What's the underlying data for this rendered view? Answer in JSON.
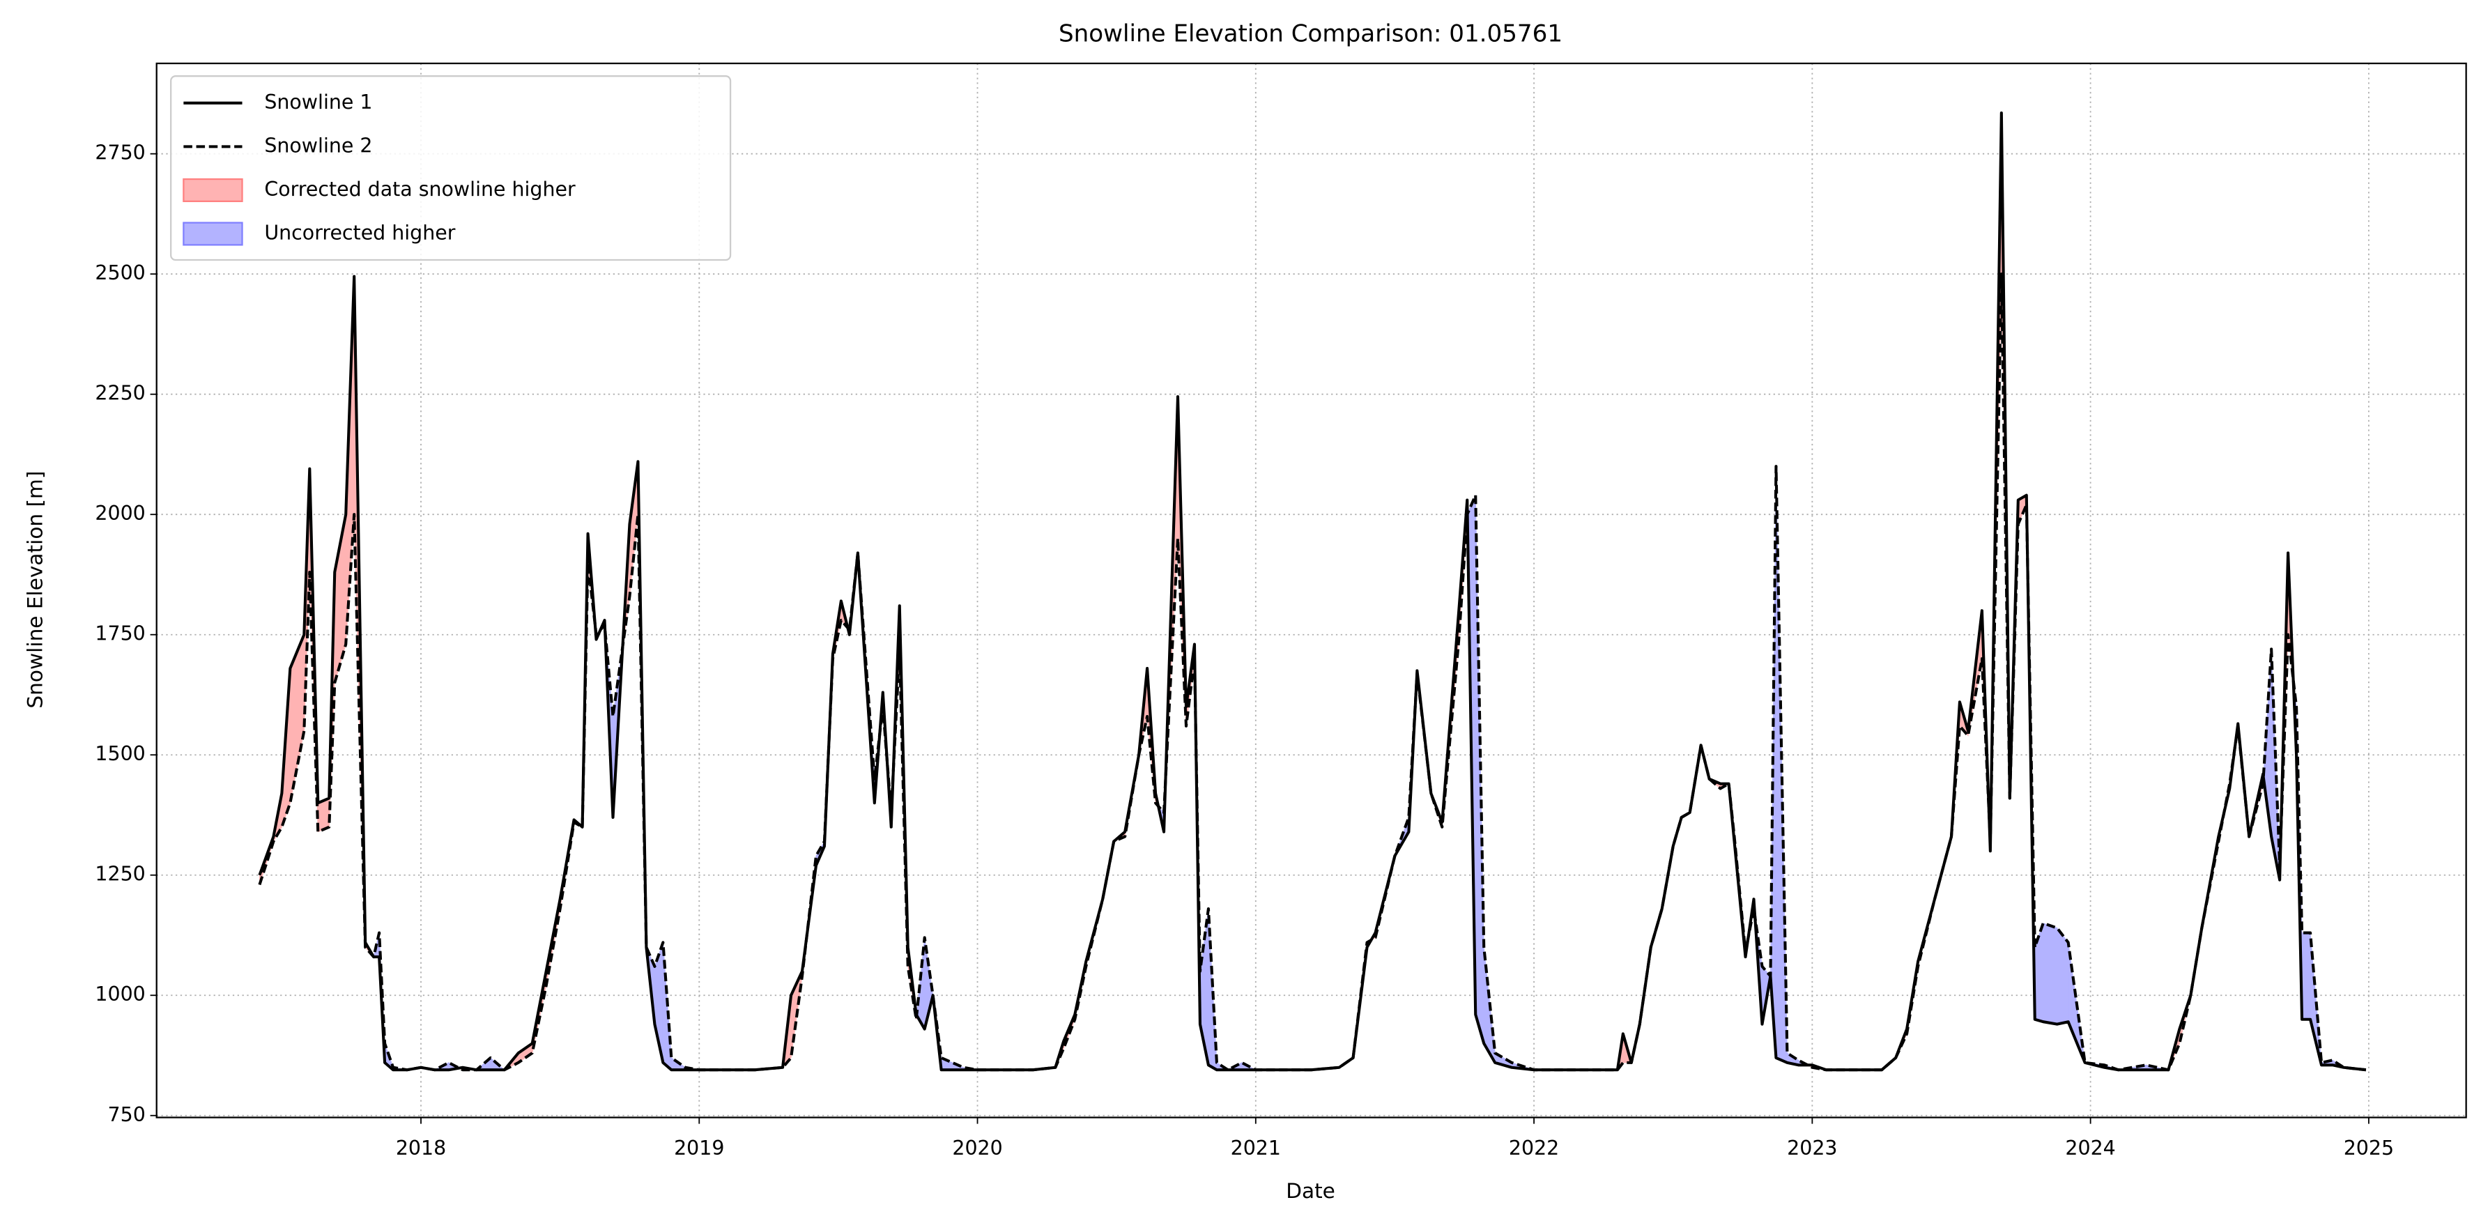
{
  "chart_data": {
    "type": "line",
    "title": "Snowline Elevation Comparison: 01.05761",
    "xlabel": "Date",
    "ylabel": "Snowline Elevation [m]",
    "x": [
      2017.42,
      2017.47,
      2017.5,
      2017.53,
      2017.58,
      2017.6,
      2017.63,
      2017.67,
      2017.69,
      2017.73,
      2017.76,
      2017.8,
      2017.83,
      2017.85,
      2017.87,
      2017.9,
      2017.95,
      2018.0,
      2018.05,
      2018.1,
      2018.15,
      2018.2,
      2018.25,
      2018.3,
      2018.35,
      2018.4,
      2018.45,
      2018.5,
      2018.55,
      2018.58,
      2018.6,
      2018.63,
      2018.66,
      2018.69,
      2018.75,
      2018.78,
      2018.81,
      2018.84,
      2018.87,
      2018.9,
      2018.95,
      2019.0,
      2019.1,
      2019.2,
      2019.3,
      2019.33,
      2019.37,
      2019.42,
      2019.45,
      2019.48,
      2019.51,
      2019.54,
      2019.57,
      2019.63,
      2019.66,
      2019.69,
      2019.72,
      2019.75,
      2019.78,
      2019.81,
      2019.84,
      2019.87,
      2019.95,
      2020.0,
      2020.1,
      2020.2,
      2020.28,
      2020.31,
      2020.35,
      2020.39,
      2020.45,
      2020.49,
      2020.53,
      2020.58,
      2020.61,
      2020.64,
      2020.67,
      2020.72,
      2020.75,
      2020.78,
      2020.8,
      2020.83,
      2020.86,
      2020.9,
      2020.95,
      2021.0,
      2021.1,
      2021.2,
      2021.3,
      2021.35,
      2021.4,
      2021.43,
      2021.5,
      2021.55,
      2021.58,
      2021.63,
      2021.67,
      2021.73,
      2021.76,
      2021.79,
      2021.82,
      2021.86,
      2021.92,
      2022.0,
      2022.1,
      2022.2,
      2022.3,
      2022.32,
      2022.35,
      2022.38,
      2022.42,
      2022.46,
      2022.5,
      2022.53,
      2022.56,
      2022.6,
      2022.63,
      2022.67,
      2022.7,
      2022.72,
      2022.76,
      2022.79,
      2022.82,
      2022.85,
      2022.87,
      2022.91,
      2022.95,
      2023.0,
      2023.05,
      2023.15,
      2023.25,
      2023.3,
      2023.34,
      2023.38,
      2023.44,
      2023.5,
      2023.53,
      2023.56,
      2023.61,
      2023.64,
      2023.68,
      2023.71,
      2023.74,
      2023.77,
      2023.8,
      2023.83,
      2023.88,
      2023.92,
      2023.98,
      2024.05,
      2024.1,
      2024.2,
      2024.28,
      2024.32,
      2024.36,
      2024.4,
      2024.46,
      2024.5,
      2024.53,
      2024.57,
      2024.62,
      2024.65,
      2024.68,
      2024.71,
      2024.74,
      2024.76,
      2024.79,
      2024.83,
      2024.87,
      2024.91,
      2024.99
    ],
    "series": [
      {
        "name": "Snowline 1",
        "color": "#000000",
        "linestyle": "solid",
        "values": [
          1250,
          1330,
          1420,
          1680,
          1750,
          2095,
          1400,
          1410,
          1880,
          2000,
          2495,
          1110,
          1080,
          1080,
          860,
          845,
          845,
          850,
          845,
          845,
          850,
          845,
          845,
          845,
          880,
          900,
          1050,
          1200,
          1365,
          1350,
          1960,
          1740,
          1780,
          1370,
          1980,
          2110,
          1100,
          940,
          860,
          845,
          845,
          845,
          845,
          845,
          850,
          1000,
          1050,
          1270,
          1310,
          1710,
          1820,
          1750,
          1920,
          1400,
          1630,
          1350,
          1810,
          1100,
          960,
          930,
          1000,
          845,
          845,
          845,
          845,
          845,
          850,
          905,
          960,
          1070,
          1200,
          1320,
          1340,
          1500,
          1680,
          1420,
          1340,
          2245,
          1600,
          1730,
          940,
          855,
          845,
          845,
          845,
          845,
          845,
          845,
          850,
          870,
          1100,
          1130,
          1290,
          1340,
          1675,
          1420,
          1360,
          1800,
          2030,
          960,
          900,
          860,
          850,
          845,
          845,
          845,
          845,
          920,
          860,
          940,
          1100,
          1180,
          1310,
          1370,
          1380,
          1520,
          1450,
          1440,
          1440,
          1320,
          1080,
          1200,
          940,
          1040,
          870,
          860,
          855,
          855,
          845,
          845,
          845,
          870,
          930,
          1070,
          1200,
          1330,
          1610,
          1550,
          1800,
          1300,
          2835,
          1410,
          2030,
          2040,
          950,
          945,
          940,
          945,
          860,
          850,
          845,
          845,
          845,
          930,
          1000,
          1140,
          1330,
          1430,
          1565,
          1330,
          1460,
          1330,
          1240,
          1920,
          1500,
          950,
          950,
          855,
          855,
          850,
          845
        ]
      },
      {
        "name": "Snowline 2",
        "color": "#000000",
        "linestyle": "dashed",
        "values": [
          1230,
          1320,
          1350,
          1400,
          1550,
          1880,
          1340,
          1350,
          1650,
          1730,
          2000,
          1100,
          1080,
          1130,
          900,
          850,
          845,
          850,
          845,
          860,
          845,
          845,
          870,
          845,
          860,
          880,
          1020,
          1180,
          1360,
          1350,
          1900,
          1750,
          1770,
          1580,
          1830,
          2000,
          1100,
          1060,
          1110,
          870,
          850,
          845,
          845,
          845,
          850,
          870,
          1040,
          1290,
          1320,
          1700,
          1780,
          1760,
          1920,
          1450,
          1600,
          1380,
          1720,
          1060,
          950,
          1120,
          1000,
          870,
          850,
          845,
          845,
          845,
          850,
          890,
          950,
          1060,
          1200,
          1320,
          1330,
          1500,
          1580,
          1400,
          1380,
          1950,
          1560,
          1700,
          1050,
          1180,
          860,
          845,
          860,
          845,
          845,
          845,
          850,
          870,
          1110,
          1120,
          1290,
          1370,
          1670,
          1420,
          1350,
          1740,
          2000,
          2040,
          1100,
          880,
          860,
          845,
          845,
          845,
          845,
          860,
          860,
          940,
          1100,
          1180,
          1310,
          1370,
          1380,
          1520,
          1450,
          1430,
          1440,
          1330,
          1090,
          1180,
          1060,
          1040,
          2100,
          880,
          865,
          850,
          845,
          845,
          845,
          870,
          920,
          1060,
          1200,
          1330,
          1560,
          1540,
          1700,
          1320,
          2500,
          1410,
          1980,
          2020,
          1100,
          1150,
          1140,
          1110,
          860,
          855,
          845,
          855,
          845,
          900,
          1000,
          1140,
          1320,
          1440,
          1560,
          1330,
          1440,
          1720,
          1270,
          1750,
          1600,
          1130,
          1130,
          860,
          865,
          850,
          845
        ]
      }
    ],
    "fills": [
      {
        "name": "Corrected data snowline higher",
        "color": "#ffb3b3",
        "edge": "#ff8080"
      },
      {
        "name": "Uncorrected higher",
        "color": "#b3b3ff",
        "edge": "#8080ff"
      }
    ],
    "xlim": [
      2017.05,
      2025.35
    ],
    "ylim": [
      746,
      2938
    ],
    "xticks": [
      2018,
      2019,
      2020,
      2021,
      2022,
      2023,
      2024,
      2025
    ],
    "yticks": [
      750,
      1000,
      1250,
      1500,
      1750,
      2000,
      2250,
      2500,
      2750
    ],
    "grid": true,
    "legend": "upper left"
  }
}
